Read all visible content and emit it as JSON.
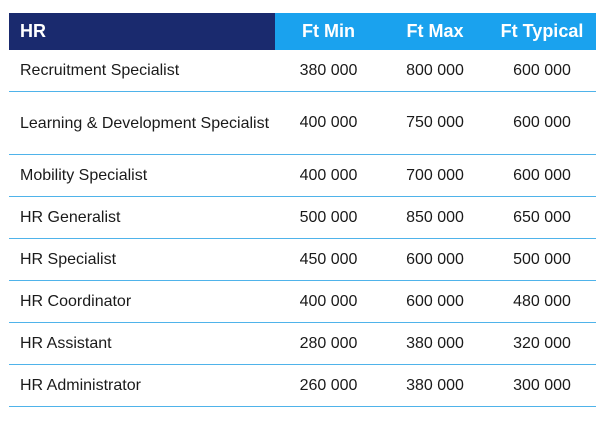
{
  "table": {
    "headers": {
      "role": "HR",
      "min": "Ft Min",
      "max": "Ft Max",
      "typical": "Ft Typical"
    },
    "rows": [
      {
        "role": "Recruitment Specialist",
        "min": "380 000",
        "max": "800 000",
        "typical": "600 000"
      },
      {
        "role": "Learning & Development Specialist",
        "min": "400 000",
        "max": "750 000",
        "typical": "600 000"
      },
      {
        "role": "Mobility Specialist",
        "min": "400 000",
        "max": "700 000",
        "typical": "600 000"
      },
      {
        "role": "HR Generalist",
        "min": "500 000",
        "max": "850 000",
        "typical": "650 000"
      },
      {
        "role": "HR Specialist",
        "min": "450 000",
        "max": "600 000",
        "typical": "500 000"
      },
      {
        "role": "HR Coordinator",
        "min": "400 000",
        "max": "600 000",
        "typical": "480 000"
      },
      {
        "role": "HR Assistant",
        "min": "280 000",
        "max": "380 000",
        "typical": "320 000"
      },
      {
        "role": "HR Administrator",
        "min": "260 000",
        "max": "380 000",
        "typical": "300 000"
      }
    ]
  },
  "colors": {
    "header_dark": "#1a2a6e",
    "header_light": "#1aa2ee",
    "row_divider": "#4fb3ea"
  }
}
